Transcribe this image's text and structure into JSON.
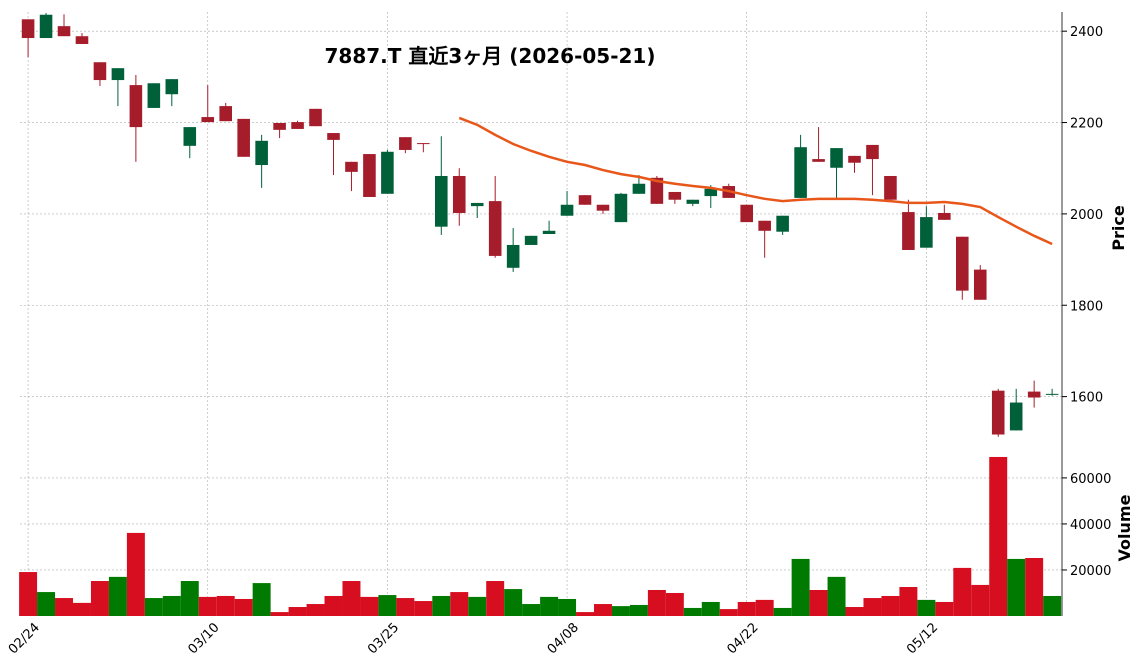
{
  "chart_data": {
    "type": "candlestick",
    "title": "7887.T 直近3ヶ月 (2026-05-21)",
    "categories": [
      "02/24",
      null,
      null,
      null,
      null,
      null,
      null,
      null,
      null,
      null,
      "03/10",
      null,
      null,
      null,
      null,
      null,
      null,
      null,
      null,
      null,
      "03/25",
      null,
      null,
      null,
      null,
      null,
      null,
      null,
      null,
      null,
      "04/08",
      null,
      null,
      null,
      null,
      null,
      null,
      null,
      null,
      null,
      "04/22",
      null,
      null,
      null,
      null,
      null,
      null,
      null,
      null,
      null,
      "05/12",
      null,
      null,
      null,
      null,
      null,
      null,
      null
    ],
    "open": [
      2426,
      2385,
      2411,
      2389,
      2332,
      2293,
      2282,
      2232,
      2262,
      2149,
      2212,
      2236,
      2208,
      2107,
      2199,
      2201,
      2230,
      2177,
      2114,
      2131,
      2044,
      2168,
      2155,
      1972,
      2083,
      2017,
      2028,
      1882,
      1932,
      1956,
      1996,
      2041,
      2020,
      1982,
      2044,
      2079,
      2048,
      2022,
      2039,
      2061,
      2020,
      1985,
      1961,
      2035,
      2120,
      2101,
      2127,
      2151,
      2083,
      2004,
      1926,
      2002,
      1950,
      1878,
      1613,
      1526,
      1611,
      1604
    ],
    "high": [
      2426,
      2440,
      2437,
      2396,
      2332,
      2319,
      2304,
      2286,
      2295,
      2190,
      2282,
      2243,
      2208,
      2173,
      2199,
      2204,
      2230,
      2177,
      2114,
      2131,
      2140,
      2168,
      2155,
      2170,
      2100,
      2024,
      2083,
      1969,
      1952,
      1985,
      2050,
      2041,
      2020,
      2046,
      2085,
      2083,
      2048,
      2031,
      2063,
      2066,
      2020,
      1985,
      1996,
      2173,
      2190,
      2144,
      2127,
      2151,
      2083,
      2031,
      2017,
      2020,
      1950,
      1888,
      1617,
      1617,
      1635,
      1617
    ],
    "low": [
      2343,
      2385,
      2389,
      2372,
      2280,
      2236,
      2114,
      2232,
      2236,
      2122,
      2201,
      2203,
      2125,
      2057,
      2166,
      2186,
      2192,
      2085,
      2050,
      2037,
      2044,
      2133,
      2135,
      1954,
      1974,
      1991,
      1904,
      1873,
      1932,
      1956,
      1996,
      2020,
      2000,
      1982,
      2044,
      2022,
      2022,
      2017,
      2013,
      2035,
      1982,
      1904,
      1954,
      2035,
      2114,
      2035,
      2090,
      2041,
      2031,
      1921,
      1926,
      1987,
      1812,
      1812,
      1512,
      1526,
      1576,
      1602
    ],
    "close": [
      2385,
      2436,
      2389,
      2372,
      2293,
      2319,
      2190,
      2286,
      2295,
      2190,
      2201,
      2203,
      2125,
      2160,
      2184,
      2186,
      2192,
      2162,
      2092,
      2037,
      2136,
      2140,
      2153,
      2083,
      2002,
      2024,
      1908,
      1932,
      1952,
      1963,
      2020,
      2020,
      2007,
      2044,
      2066,
      2022,
      2031,
      2031,
      2055,
      2035,
      1982,
      1963,
      1996,
      2146,
      2114,
      2144,
      2112,
      2120,
      2031,
      1921,
      1993,
      1987,
      1832,
      1812,
      1517,
      1587,
      1598,
      1606
    ],
    "up_color": "#00603a",
    "down_color": "#a51d2b",
    "moving_average": {
      "color": "#e8561a",
      "values": [
        null,
        null,
        null,
        null,
        null,
        null,
        null,
        null,
        null,
        null,
        null,
        null,
        null,
        null,
        null,
        null,
        null,
        null,
        null,
        null,
        null,
        null,
        null,
        null,
        2210,
        2195,
        2173,
        2153,
        2138,
        2125,
        2114,
        2107,
        2096,
        2087,
        2081,
        2072,
        2066,
        2061,
        2057,
        2050,
        2041,
        2033,
        2028,
        2031,
        2033,
        2033,
        2033,
        2031,
        2028,
        2024,
        2024,
        2026,
        2022,
        2015,
        1993,
        1972,
        1952,
        1934
      ]
    },
    "ylabel": "Price",
    "ylim": [
      1505,
      2442
    ],
    "yticks": [
      1600,
      1800,
      2000,
      2200,
      2400
    ],
    "volume": {
      "label": "Volume",
      "up_color": "#007a00",
      "down_color": "#d60e1f",
      "values": [
        19100,
        10400,
        7800,
        5700,
        15200,
        17000,
        36100,
        7800,
        8700,
        15200,
        8300,
        8700,
        7400,
        14300,
        1700,
        3900,
        5200,
        8700,
        15200,
        8300,
        9100,
        7800,
        6500,
        8700,
        10400,
        8300,
        15200,
        11700,
        5200,
        8300,
        7400,
        1700,
        5200,
        4300,
        4800,
        11300,
        10000,
        3500,
        6100,
        3000,
        6100,
        7000,
        3500,
        24800,
        11300,
        17000,
        3900,
        7800,
        8700,
        12600,
        7000,
        6100,
        20900,
        13500,
        69100,
        24800,
        25200,
        8700
      ],
      "ylim": [
        0,
        74300
      ],
      "yticks": [
        20000,
        40000,
        60000
      ]
    },
    "grid": true
  }
}
